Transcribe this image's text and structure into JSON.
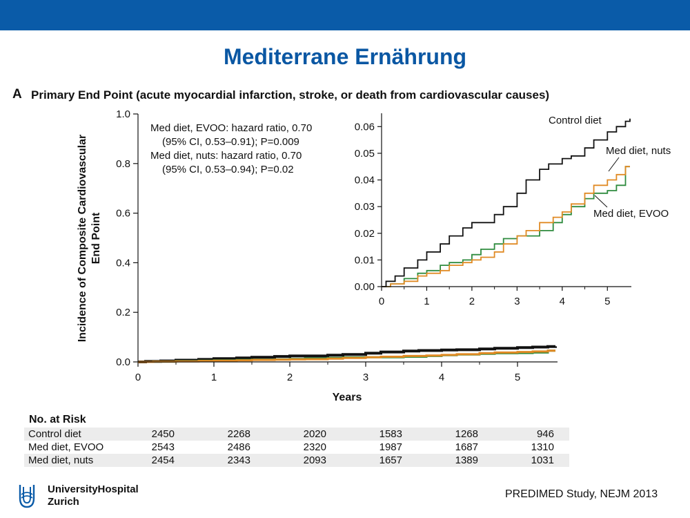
{
  "slide": {
    "title": "Mediterrane Ernährung",
    "panel_label": "A",
    "panel_title": "Primary End Point (acute myocardial infarction, stroke, or death from cardiovascular causes)",
    "source": "PREDIMED Study, NEJM 2013",
    "logo": {
      "line1": "UniversityHospital",
      "line2": "Zurich"
    },
    "colors": {
      "header_bar": "#0a5ba8",
      "title": "#0a57a3"
    }
  },
  "chart_data": {
    "type": "line",
    "xlabel": "Years",
    "ylabel": "Incidence of Composite Cardiovascular End Point",
    "xlim": [
      0,
      5.5
    ],
    "ylim": [
      0,
      1.0
    ],
    "x_ticks": [
      "0",
      "1",
      "2",
      "3",
      "4",
      "5"
    ],
    "y_ticks": [
      "0.0",
      "0.2",
      "0.4",
      "0.6",
      "0.8",
      "1.0"
    ],
    "hr_text": [
      "Med diet, EVOO: hazard ratio, 0.70",
      "(95% CI, 0.53–0.91); P=0.009",
      "Med diet, nuts: hazard ratio, 0.70",
      "(95% CI, 0.53–0.94);  P=0.02"
    ],
    "series": [
      {
        "name": "Control diet",
        "color": "#111111",
        "x": [
          0,
          0.1,
          0.3,
          0.5,
          0.8,
          1.0,
          1.3,
          1.5,
          1.8,
          2.0,
          2.2,
          2.5,
          2.7,
          3.0,
          3.2,
          3.5,
          3.7,
          4.0,
          4.2,
          4.5,
          4.7,
          5.0,
          5.2,
          5.4,
          5.5
        ],
        "y": [
          0,
          0.002,
          0.004,
          0.007,
          0.01,
          0.013,
          0.016,
          0.019,
          0.022,
          0.024,
          0.024,
          0.027,
          0.03,
          0.035,
          0.04,
          0.044,
          0.046,
          0.048,
          0.049,
          0.052,
          0.055,
          0.058,
          0.06,
          0.062,
          0.063
        ]
      },
      {
        "name": "Med diet, EVOO",
        "color": "#2e8b3e",
        "x": [
          0,
          0.2,
          0.5,
          0.8,
          1.0,
          1.3,
          1.5,
          1.8,
          2.0,
          2.2,
          2.5,
          2.7,
          3.0,
          3.2,
          3.5,
          3.8,
          4.0,
          4.2,
          4.5,
          4.7,
          5.0,
          5.2,
          5.4,
          5.5
        ],
        "y": [
          0,
          0.001,
          0.003,
          0.005,
          0.006,
          0.008,
          0.009,
          0.01,
          0.012,
          0.014,
          0.016,
          0.018,
          0.019,
          0.019,
          0.021,
          0.024,
          0.027,
          0.03,
          0.033,
          0.035,
          0.036,
          0.038,
          0.045,
          0.045
        ]
      },
      {
        "name": "Med diet, nuts",
        "color": "#e08a24",
        "x": [
          0,
          0.2,
          0.5,
          0.8,
          1.0,
          1.3,
          1.5,
          1.8,
          2.0,
          2.2,
          2.5,
          2.7,
          3.0,
          3.2,
          3.5,
          3.8,
          4.0,
          4.2,
          4.5,
          4.7,
          5.0,
          5.2,
          5.4,
          5.5
        ],
        "y": [
          0,
          0.001,
          0.002,
          0.004,
          0.005,
          0.006,
          0.008,
          0.009,
          0.01,
          0.011,
          0.013,
          0.016,
          0.019,
          0.021,
          0.024,
          0.026,
          0.028,
          0.031,
          0.035,
          0.038,
          0.04,
          0.042,
          0.045,
          0.045
        ]
      }
    ],
    "inset": {
      "xlim": [
        0,
        5.5
      ],
      "ylim": [
        0,
        0.065
      ],
      "x_ticks": [
        "0",
        "1",
        "2",
        "3",
        "4",
        "5"
      ],
      "y_ticks": [
        "0.00",
        "0.01",
        "0.02",
        "0.03",
        "0.04",
        "0.05",
        "0.06"
      ],
      "labels": [
        "Control diet",
        "Med diet, nuts",
        "Med diet, EVOO"
      ]
    },
    "risk_table": {
      "title": "No. at Risk",
      "rows": [
        {
          "label": "Control diet",
          "values": [
            "2450",
            "2268",
            "2020",
            "1583",
            "1268",
            "946"
          ]
        },
        {
          "label": "Med diet, EVOO",
          "values": [
            "2543",
            "2486",
            "2320",
            "1987",
            "1687",
            "1310"
          ]
        },
        {
          "label": "Med diet, nuts",
          "values": [
            "2454",
            "2343",
            "2093",
            "1657",
            "1389",
            "1031"
          ]
        }
      ]
    }
  }
}
